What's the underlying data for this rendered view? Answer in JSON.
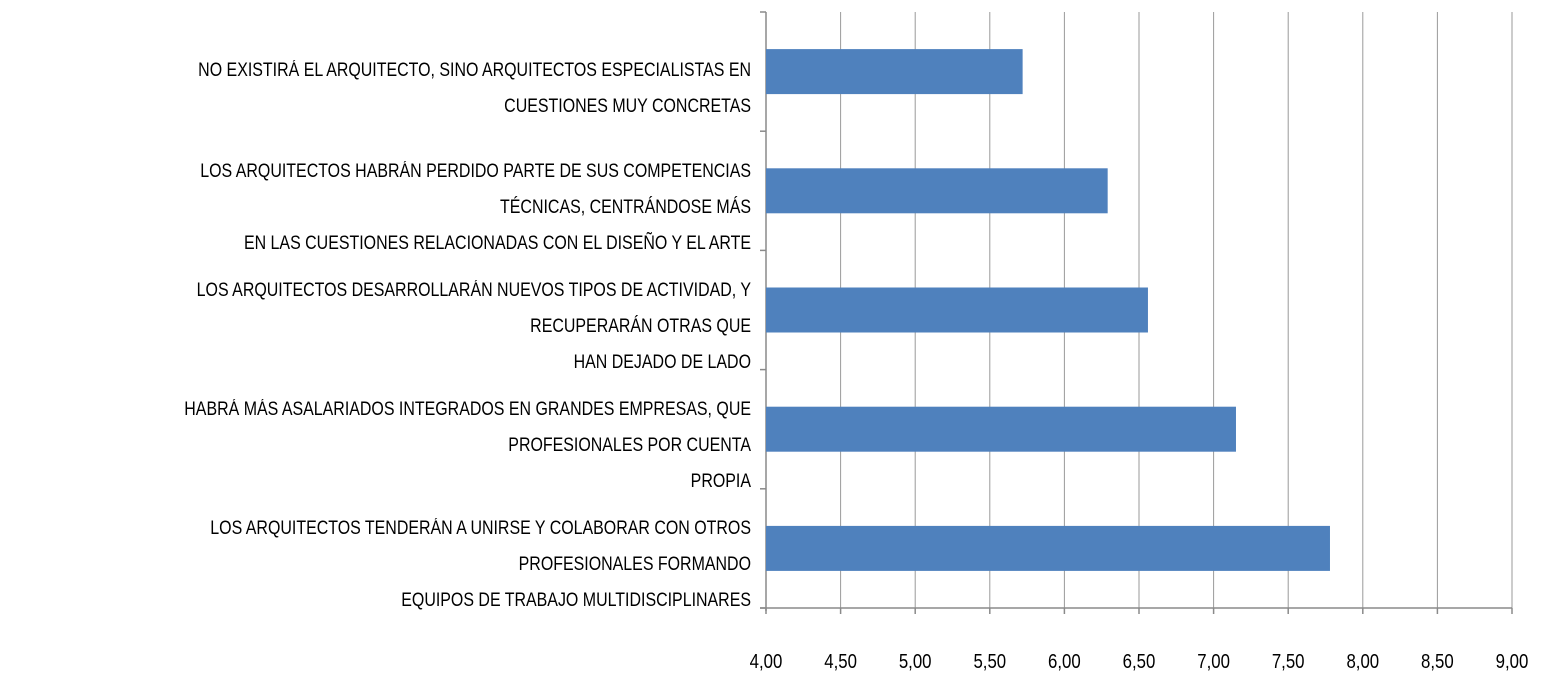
{
  "chart_data": {
    "type": "bar",
    "orientation": "horizontal",
    "title": "",
    "xlabel": "",
    "ylabel": "",
    "xlim": [
      4.0,
      9.0
    ],
    "x_ticks": [
      "4,00",
      "4,50",
      "5,00",
      "5,50",
      "6,00",
      "6,50",
      "7,00",
      "7,50",
      "8,00",
      "8,50",
      "9,00"
    ],
    "x_tick_values": [
      4.0,
      4.5,
      5.0,
      5.5,
      6.0,
      6.5,
      7.0,
      7.5,
      8.0,
      8.5,
      9.0
    ],
    "grid": "vertical",
    "legend": "none",
    "bar_color": "#4F81BD",
    "categories": [
      [
        "NO EXISTIRÁ EL ARQUITECTO, SINO ARQUITECTOS ESPECIALISTAS EN CUESTIONES MUY CONCRETAS"
      ],
      [
        "LOS ARQUITECTOS HABRÁN PERDIDO PARTE DE SUS COMPETENCIAS TÉCNICAS, CENTRÁNDOSE MÁS",
        "EN LAS CUESTIONES RELACIONADAS CON EL DISEÑO Y EL ARTE"
      ],
      [
        "LOS ARQUITECTOS DESARROLLARÁN NUEVOS TIPOS DE ACTIVIDAD, Y RECUPERARÁN OTRAS QUE",
        "HAN DEJADO DE LADO"
      ],
      [
        "HABRÁ MÁS ASALARIADOS INTEGRADOS EN GRANDES EMPRESAS, QUE PROFESIONALES POR CUENTA",
        "PROPIA"
      ],
      [
        "LOS ARQUITECTOS TENDERÁN A UNIRSE Y COLABORAR CON OTROS PROFESIONALES FORMANDO",
        "EQUIPOS DE TRABAJO MULTIDISCIPLINARES"
      ]
    ],
    "values": [
      5.72,
      6.29,
      6.56,
      7.15,
      7.78
    ]
  }
}
